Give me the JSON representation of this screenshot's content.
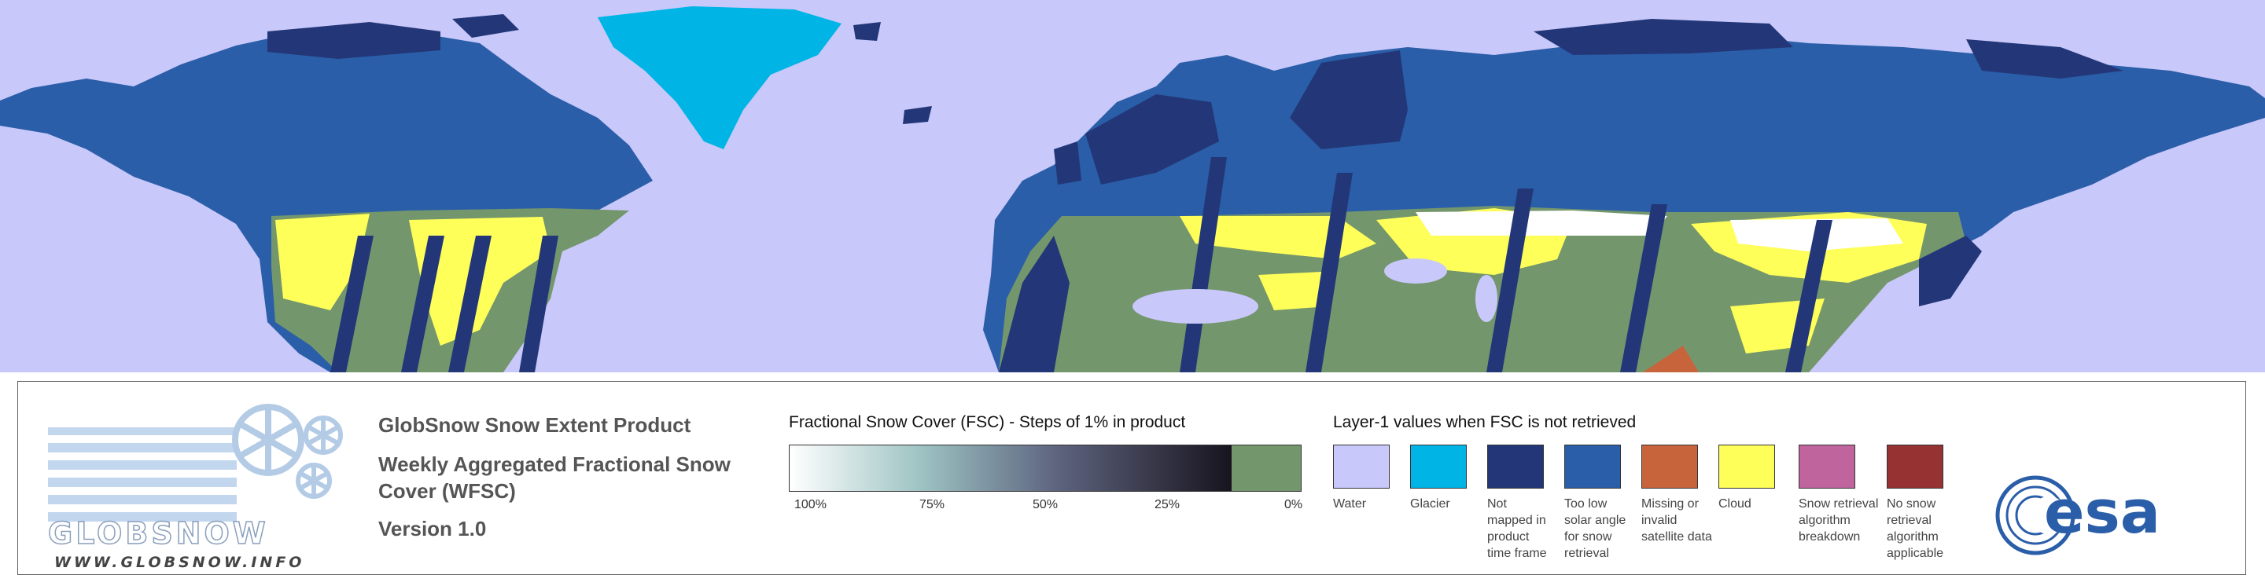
{
  "map": {
    "colors": {
      "water": "#c8c8fa",
      "glacier": "#00b4e6",
      "not_mapped": "#233778",
      "low_sun": "#2a5ea8",
      "cloud": "#ffff5a",
      "no_snow": "#74966d",
      "snow": "#ffffff"
    }
  },
  "logo": {
    "brand": "GLOBSNOW",
    "url": "WWW.GLOBSNOW.INFO"
  },
  "product": {
    "title": "GlobSnow Snow Extent Product",
    "subtitle": "Weekly Aggregated Fractional Snow Cover (WFSC)",
    "version": "Version 1.0"
  },
  "fsc_legend": {
    "title": "Fractional Snow Cover (FSC) - Steps of 1% in product",
    "ticks": [
      "100%",
      "75%",
      "50%",
      "25%",
      "0%"
    ]
  },
  "layer_legend": {
    "title": "Layer-1 values when FSC is not retrieved",
    "items": [
      {
        "label": "Water",
        "color": "#c8c8fa"
      },
      {
        "label": "Glacier",
        "color": "#00b4e6"
      },
      {
        "label": "Not mapped in product time frame",
        "color": "#233778"
      },
      {
        "label": "Too low solar angle for snow retrieval",
        "color": "#2a5ea8"
      },
      {
        "label": "Missing or invalid satellite data",
        "color": "#c8643c"
      },
      {
        "label": "Cloud",
        "color": "#ffff5a"
      },
      {
        "label": "Snow retrieval algorithm breakdown",
        "color": "#c0649e"
      },
      {
        "label": "No snow retrieval algorithm applicable",
        "color": "#963232"
      }
    ]
  },
  "esa_logo": {
    "text": "esa"
  }
}
